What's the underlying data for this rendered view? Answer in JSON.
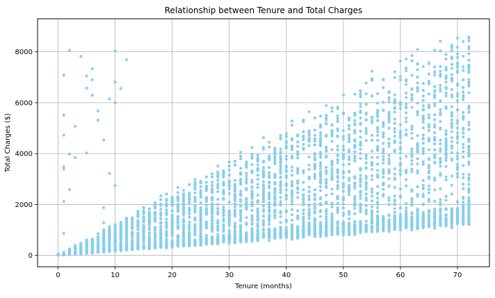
{
  "chart_data": {
    "type": "scatter",
    "title": "Relationship between Tenure and Total Charges",
    "xlabel": "Tenure (months)",
    "ylabel": "Total Charges ($)",
    "xlim": [
      -3.6,
      75.6
    ],
    "ylim": [
      -445,
      9300
    ],
    "xticks": [
      0,
      10,
      20,
      30,
      40,
      50,
      60,
      70
    ],
    "yticks": [
      0,
      2000,
      4000,
      6000,
      8000
    ],
    "grid": true,
    "legend": "none",
    "series": [
      {
        "color": "#87ceeb",
        "x_min": 0,
        "x_max": 72,
        "approx_monthly_charge_range": [
          18,
          120
        ],
        "points_per_tenure_value": 60,
        "description_of_distribution": "dense vertical columns at each integer tenure from 0 to 72; total charges range from near 0 up to about tenure × 120, with a dense floor near tenure × 20"
      }
    ]
  }
}
